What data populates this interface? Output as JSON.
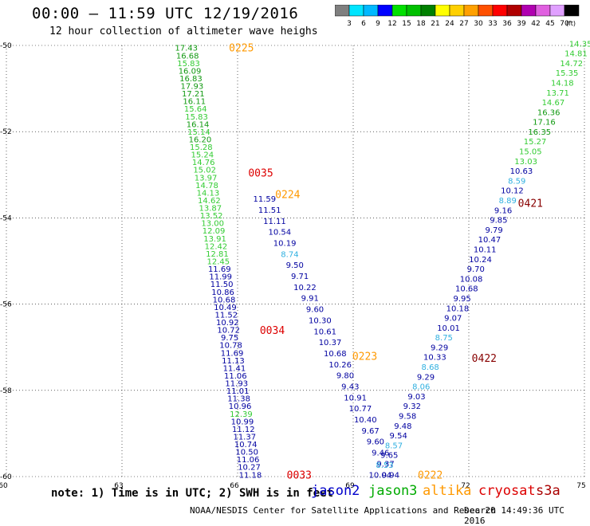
{
  "header": {
    "title": "00:00 – 11:59 UTC 12/19/2016",
    "subtitle": "12 hour collection of altimeter wave heighs"
  },
  "colorbar": {
    "labels": [
      "3",
      "6",
      "9",
      "12",
      "15",
      "18",
      "21",
      "24",
      "27",
      "30",
      "33",
      "36",
      "39",
      "42",
      "45",
      "70"
    ],
    "unit": "(ft)",
    "colors": [
      "#7f7f7f",
      "#00e5ff",
      "#00b8ff",
      "#0000ff",
      "#00e000",
      "#00c000",
      "#008000",
      "#ffff00",
      "#ffd000",
      "#ffa000",
      "#ff5000",
      "#ff0000",
      "#b00000",
      "#b000b0",
      "#e060e0",
      "#e0a0ff",
      "#000000"
    ]
  },
  "note": "note: 1) Time is in UTC; 2) SWH is in feet",
  "legend": [
    {
      "name": "jason2",
      "color": "#0000cc"
    },
    {
      "name": "jason3",
      "color": "#00aa00"
    },
    {
      "name": "altika",
      "color": "#ff9900"
    },
    {
      "name": "cryosat",
      "color": "#dd0000"
    },
    {
      "name": "s3a",
      "color": "#aa0000"
    }
  ],
  "footer": {
    "credit": "NOAA/NESDIS Center for Satellite Applications and Research",
    "timestamp": "Dec 20 14:49:36 UTC 2016"
  },
  "chart_data": {
    "type": "scatter",
    "xlim": [
      60,
      75
    ],
    "ylim": [
      -60,
      -50
    ],
    "x_ticks": [
      60,
      63,
      66,
      69,
      72,
      75
    ],
    "y_ticks": [
      -50,
      -52,
      -54,
      -56,
      -58,
      -60
    ],
    "x_tick_labels": [
      "60",
      "63",
      "66",
      "69",
      "72",
      "75"
    ],
    "y_tick_labels": [
      "-50",
      "-52",
      "-54",
      "-56",
      "-58",
      "-60"
    ],
    "grid": true,
    "color_scale": {
      "blue_max": 11.99,
      "lightblue_max": 8.99,
      "lightgreen_max": 15.99,
      "blue": "#0000a0",
      "lightblue": "#30b0e0",
      "lightgreen": "#33cc33",
      "darkgreen": "#119911"
    },
    "series": [
      {
        "satellite": "jason2",
        "x_start": 64.67,
        "y_start": -50.05,
        "x_end": 66.33,
        "y_end": -59.95,
        "values": [
          "17.43",
          "16.68",
          "15.83",
          "16.09",
          "16.83",
          "17.93",
          "17.21",
          "16.11",
          "15.64",
          "15.83",
          "16.14",
          "15.14",
          "16.20",
          "15.28",
          "15.24",
          "14.76",
          "15.02",
          "13.97",
          "14.78",
          "14.13",
          "14.62",
          "13.87",
          "13.52",
          "13.00",
          "12.09",
          "13.91",
          "12.42",
          "12.81",
          "12.45",
          "11.69",
          "11.99",
          "11.50",
          "10.86",
          "10.68",
          "10.49",
          "11.52",
          "10.92",
          "10.72",
          "9.75",
          "10.78",
          "11.69",
          "11.13",
          "11.41",
          "11.06",
          "11.93",
          "11.01",
          "11.38",
          "10.96",
          "12.39",
          "10.99",
          "11.12",
          "11.37",
          "10.74",
          "10.50",
          "11.06",
          "10.27",
          "11.18"
        ]
      },
      {
        "satellite": "jason3",
        "x_start": 66.7,
        "y_start": -53.55,
        "x_end": 69.97,
        "y_end": -59.95,
        "values": [
          "11.59",
          "11.51",
          "11.11",
          "10.54",
          "10.19",
          "8.74",
          "9.50",
          "9.71",
          "10.22",
          "9.91",
          "9.60",
          "10.30",
          "10.61",
          "10.37",
          "10.68",
          "10.26",
          "9.80",
          "9.43",
          "10.91",
          "10.77",
          "10.40",
          "9.67",
          "9.60",
          "9.46",
          "9.37",
          "9.94"
        ]
      },
      {
        "satellite": "altika",
        "x_start": 74.9,
        "y_start": -49.95,
        "x_end": 69.7,
        "y_end": -59.95,
        "values": [
          "14.35",
          "14.81",
          "14.72",
          "15.35",
          "14.18",
          "13.71",
          "14.67",
          "16.36",
          "17.16",
          "16.35",
          "15.27",
          "15.05",
          "13.03",
          "10.63",
          "8.59",
          "10.12",
          "8.89",
          "9.16",
          "9.85",
          "9.79",
          "10.47",
          "10.11",
          "10.24",
          "9.70",
          "10.08",
          "10.68",
          "9.95",
          "10.18",
          "9.07",
          "10.01",
          "8.75",
          "9.29",
          "10.33",
          "8.68",
          "9.29",
          "8.06",
          "9.03",
          "9.32",
          "9.58",
          "9.48",
          "9.54",
          "8.57",
          "9.65",
          "8.53",
          "10.04"
        ]
      }
    ],
    "time_labels": [
      {
        "text": "0225",
        "x": 66.1,
        "y": -50.05,
        "color": "#ff9900"
      },
      {
        "text": "0035",
        "x": 66.6,
        "y": -52.95,
        "color": "#dd0000"
      },
      {
        "text": "0224",
        "x": 67.3,
        "y": -53.45,
        "color": "#ff9900"
      },
      {
        "text": "0421",
        "x": 73.6,
        "y": -53.65,
        "color": "#880000"
      },
      {
        "text": "0034",
        "x": 66.9,
        "y": -56.6,
        "color": "#dd0000"
      },
      {
        "text": "0223",
        "x": 69.3,
        "y": -57.2,
        "color": "#ff9900"
      },
      {
        "text": "0422",
        "x": 72.4,
        "y": -57.25,
        "color": "#880000"
      },
      {
        "text": "0033",
        "x": 67.6,
        "y": -59.95,
        "color": "#dd0000"
      },
      {
        "text": "0222",
        "x": 71.0,
        "y": -59.95,
        "color": "#ff9900"
      }
    ]
  }
}
